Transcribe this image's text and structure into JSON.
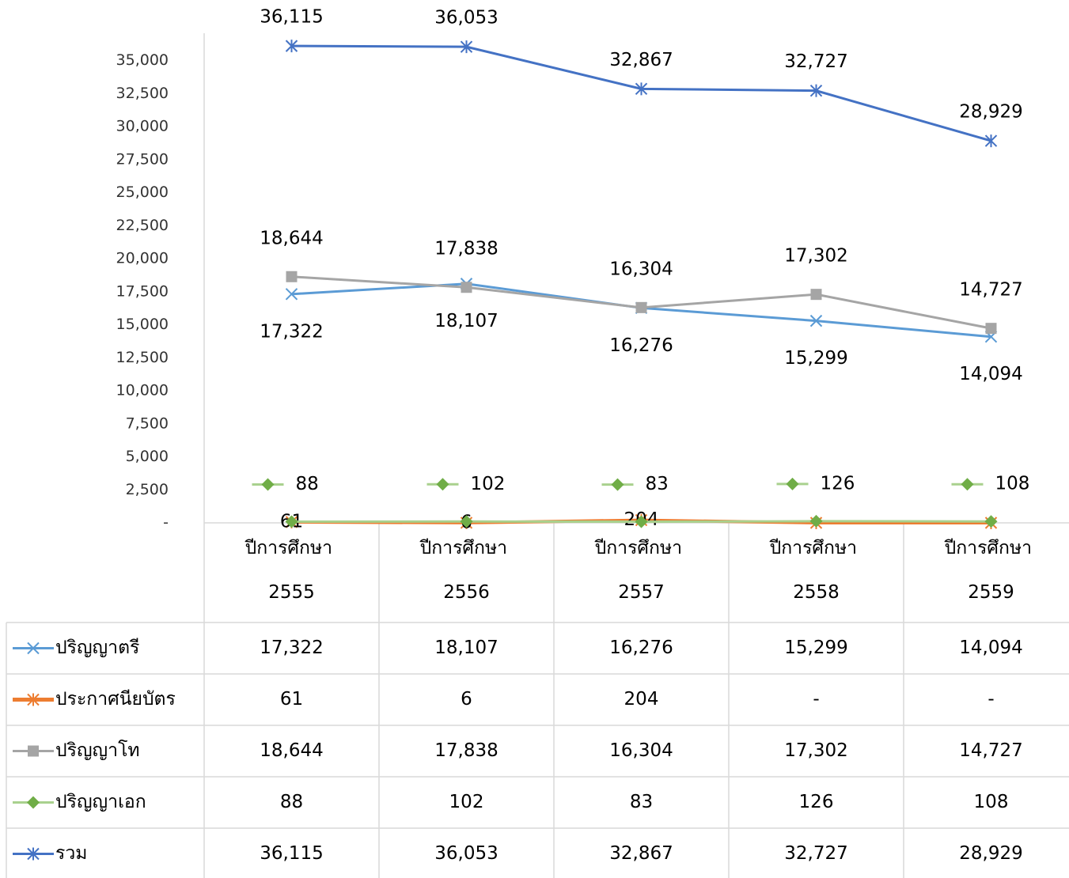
{
  "chart_data": {
    "type": "line",
    "categories": [
      "ปีการศึกษา 2555",
      "ปีการศึกษา 2556",
      "ปีการศึกษา 2557",
      "ปีการศึกษา 2558",
      "ปีการศึกษา 2559"
    ],
    "series": [
      {
        "name": "ปริญญาตรี",
        "color": "#5b9bd5",
        "marker": "x",
        "values": [
          17322,
          18107,
          16276,
          15299,
          14094
        ],
        "value_labels": [
          "17,322",
          "18,107",
          "16,276",
          "15,299",
          "14,094"
        ]
      },
      {
        "name": "ประกาศนียบัตร",
        "color": "#ed7d31",
        "marker": "star",
        "values": [
          61,
          6,
          204,
          0,
          0
        ],
        "value_labels": [
          "61",
          "6",
          "204",
          "-",
          "-"
        ]
      },
      {
        "name": "ปริญญาโท",
        "color": "#a5a5a5",
        "marker": "square",
        "values": [
          18644,
          17838,
          16304,
          17302,
          14727
        ],
        "value_labels": [
          "18,644",
          "17,838",
          "16,304",
          "17,302",
          "14,727"
        ]
      },
      {
        "name": "ปริญญาเอก",
        "color": "#a9d18e",
        "marker_color": "#70ad47",
        "marker": "diamond",
        "values": [
          88,
          102,
          83,
          126,
          108
        ],
        "value_labels": [
          "88",
          "102",
          "83",
          "126",
          "108"
        ]
      },
      {
        "name": "รวม",
        "color": "#4472c4",
        "marker": "star",
        "values": [
          36115,
          36053,
          32867,
          32727,
          28929
        ],
        "value_labels": [
          "36,115",
          "36,053",
          "32,867",
          "32,727",
          "28,929"
        ]
      }
    ],
    "ylim": [
      0,
      37500
    ],
    "yticks": [
      {
        "value": 0,
        "label": "-"
      },
      {
        "value": 2500,
        "label": "2,500"
      },
      {
        "value": 5000,
        "label": "5,000"
      },
      {
        "value": 7500,
        "label": "7,500"
      },
      {
        "value": 10000,
        "label": "10,000"
      },
      {
        "value": 12500,
        "label": "12,500"
      },
      {
        "value": 15000,
        "label": "15,000"
      },
      {
        "value": 17500,
        "label": "17,500"
      },
      {
        "value": 20000,
        "label": "20,000"
      },
      {
        "value": 22500,
        "label": "22,500"
      },
      {
        "value": 25000,
        "label": "25,000"
      },
      {
        "value": 27500,
        "label": "27,500"
      },
      {
        "value": 30000,
        "label": "30,000"
      },
      {
        "value": 32500,
        "label": "32,500"
      },
      {
        "value": 35000,
        "label": "35,000"
      }
    ],
    "data_table": true
  }
}
